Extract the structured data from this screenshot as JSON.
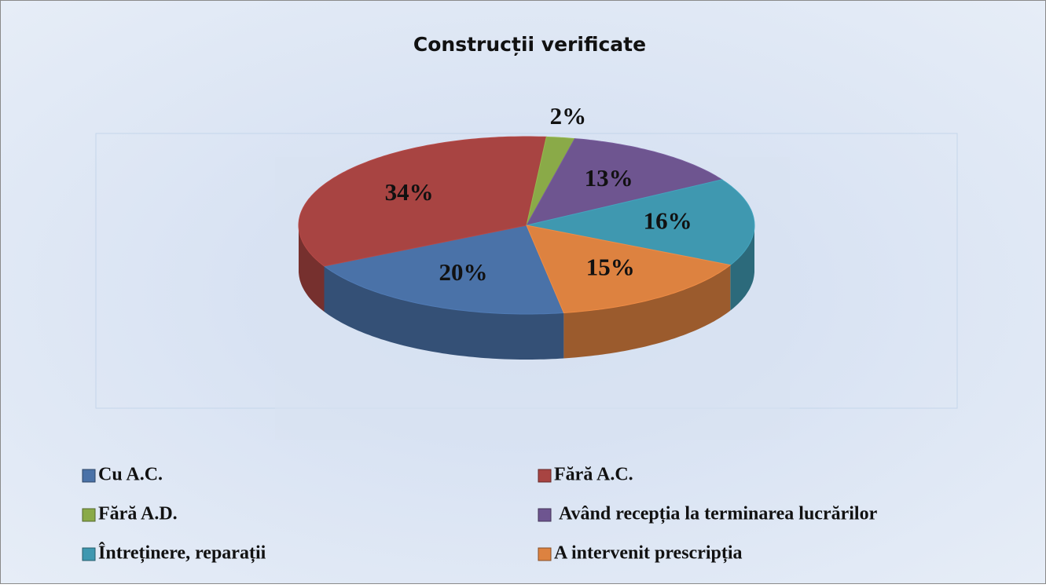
{
  "chart_data": {
    "type": "pie",
    "title": "Construcții verificate",
    "categories": [
      "Cu A.C.",
      "Fără A.C.",
      "Fără A.D.",
      "Având recepția la terminarea lucrărilor",
      "Întreținere, reparații",
      "A intervenit prescripția"
    ],
    "values": [
      20,
      34,
      2,
      13,
      16,
      15
    ],
    "value_labels": [
      "20%",
      "34%",
      "2%",
      "13%",
      "16%",
      "15%"
    ],
    "colors": [
      "#4a72a8",
      "#a84442",
      "#8aaa48",
      "#6e5590",
      "#3f98b0",
      "#dd8240"
    ]
  }
}
